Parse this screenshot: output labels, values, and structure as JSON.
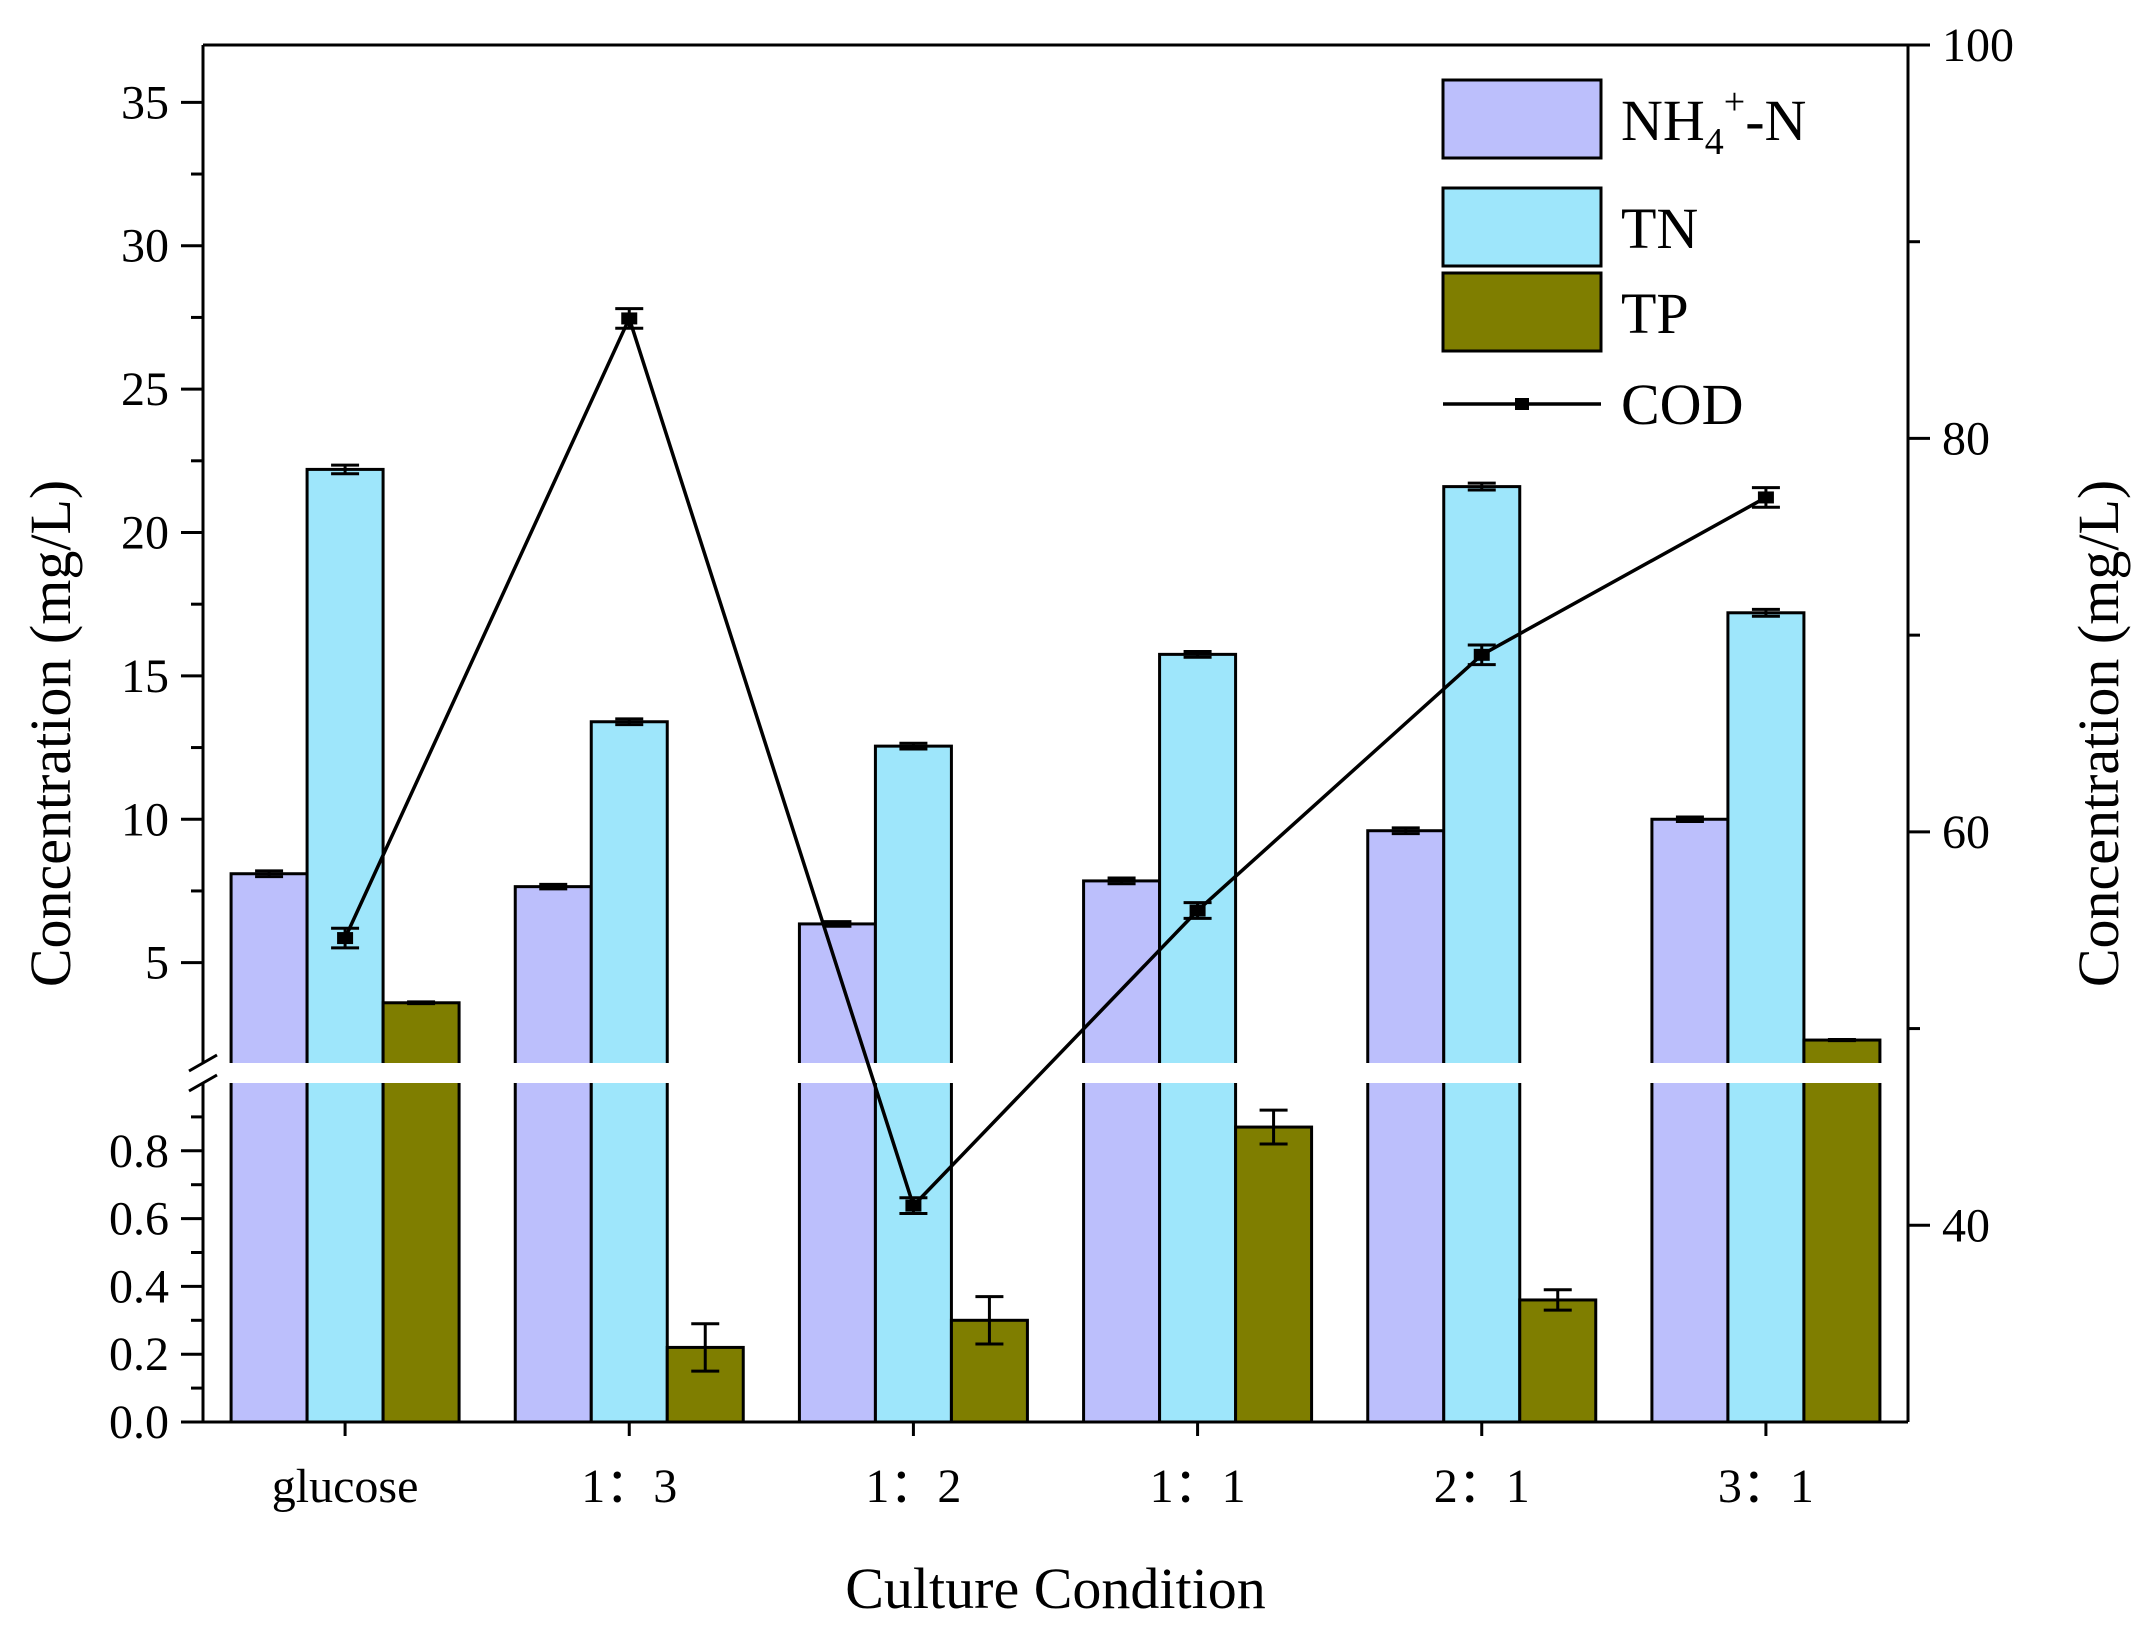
{
  "chart_data": {
    "type": "bar",
    "xlabel": "Culture Condition",
    "ylabel_left": "Concentration (mg/L)",
    "ylabel_right": "Concentration (mg/L)",
    "categories": [
      "glucose",
      "1：3",
      "1：2",
      "1：1",
      "2：1",
      "3：1"
    ],
    "left_axis_lower": {
      "range": [
        0,
        1.0
      ],
      "ticks": [
        "0.0",
        "0.2",
        "0.4",
        "0.6",
        "0.8"
      ]
    },
    "left_axis_upper": {
      "range": [
        1.5,
        37
      ],
      "ticks": [
        "5",
        "10",
        "15",
        "20",
        "25",
        "30",
        "35"
      ]
    },
    "right_axis": {
      "range": [
        30,
        100
      ],
      "ticks": [
        "40",
        "60",
        "80",
        "100"
      ]
    },
    "series": [
      {
        "name": "NH4+-N",
        "legend_main": "NH",
        "legend_sub": "4",
        "legend_sup": "+",
        "legend_tail": "-N",
        "type": "bar",
        "color": "#bcbffc",
        "values": [
          8.1,
          7.65,
          6.35,
          7.85,
          9.6,
          10.0
        ],
        "errors": [
          0.1,
          0.08,
          0.08,
          0.1,
          0.1,
          0.08
        ]
      },
      {
        "name": "TN",
        "type": "bar",
        "color": "#9ee6fb",
        "values": [
          22.2,
          13.4,
          12.55,
          15.75,
          21.6,
          17.2
        ],
        "errors": [
          0.15,
          0.1,
          0.1,
          0.1,
          0.12,
          0.12
        ]
      },
      {
        "name": "TP",
        "type": "bar",
        "color": "#7f7e00",
        "values": [
          3.6,
          0.22,
          0.3,
          0.87,
          0.36,
          2.3
        ],
        "errors": [
          0.03,
          0.07,
          0.07,
          0.05,
          0.03,
          0.02
        ]
      },
      {
        "name": "COD",
        "type": "line",
        "axis": "right",
        "color": "#000000",
        "values": [
          54.6,
          86.1,
          41.0,
          56.0,
          69.0,
          77.0
        ],
        "errors": [
          0.5,
          0.5,
          0.4,
          0.4,
          0.5,
          0.5
        ]
      }
    ]
  }
}
